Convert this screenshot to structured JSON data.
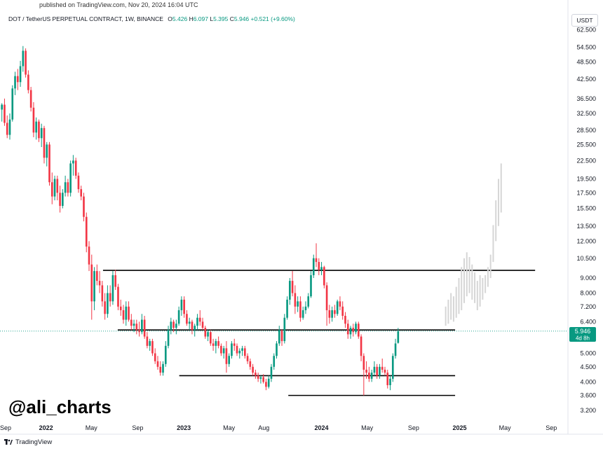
{
  "header": {
    "published": "published on TradingView.com, Nov 20, 2024 16:04 UTC",
    "symbol": "DOT / TetherUS PERPETUAL CONTRACT, 1W, BINANCE",
    "open_label": "O",
    "open": "5.426",
    "high_label": "H",
    "high": "6.097",
    "low_label": "L",
    "low": "5.395",
    "close_label": "C",
    "close": "5.946",
    "change": "+0.521 (+9.60%)"
  },
  "currency": "USDT",
  "watermark": "@ali_charts",
  "footer": {
    "brand": "TradingView"
  },
  "colors": {
    "up": "#089981",
    "down": "#f23645",
    "projection": "#d6d6d6",
    "level_line": "#000000",
    "price_tag": "#089981"
  },
  "chart_data": {
    "type": "candlestick",
    "scale": "log",
    "ylim": [
      3.0,
      64.0
    ],
    "xlim": [
      "2021-09-01",
      "2025-10-15"
    ],
    "current_price": {
      "value": 5.946,
      "label": "5.946",
      "countdown": "4d 8h"
    },
    "y_ticks": [
      {
        "v": 62.5,
        "label": "62.500"
      },
      {
        "v": 54.5,
        "label": "54.500"
      },
      {
        "v": 48.5,
        "label": "48.500"
      },
      {
        "v": 42.5,
        "label": "42.500"
      },
      {
        "v": 36.5,
        "label": "36.500"
      },
      {
        "v": 32.5,
        "label": "32.500"
      },
      {
        "v": 28.5,
        "label": "28.500"
      },
      {
        "v": 25.5,
        "label": "25.500"
      },
      {
        "v": 22.5,
        "label": "22.500"
      },
      {
        "v": 19.5,
        "label": "19.500"
      },
      {
        "v": 17.5,
        "label": "17.500"
      },
      {
        "v": 15.5,
        "label": "15.500"
      },
      {
        "v": 13.5,
        "label": "13.500"
      },
      {
        "v": 12.0,
        "label": "12.000"
      },
      {
        "v": 10.5,
        "label": "10.500"
      },
      {
        "v": 9.0,
        "label": "9.000"
      },
      {
        "v": 8.0,
        "label": "8.000"
      },
      {
        "v": 7.2,
        "label": "7.200"
      },
      {
        "v": 6.4,
        "label": "6.400"
      },
      {
        "v": 5.0,
        "label": "5.000"
      },
      {
        "v": 4.5,
        "label": "4.500"
      },
      {
        "v": 4.0,
        "label": "4.000"
      },
      {
        "v": 3.6,
        "label": "3.600"
      },
      {
        "v": 3.2,
        "label": "3.200"
      }
    ],
    "x_ticks": [
      {
        "d": "2021-09-01",
        "label": "Sep",
        "bold": false
      },
      {
        "d": "2022-01-01",
        "label": "2022",
        "bold": true
      },
      {
        "d": "2022-05-01",
        "label": "May",
        "bold": false
      },
      {
        "d": "2022-09-01",
        "label": "Sep",
        "bold": false
      },
      {
        "d": "2023-01-01",
        "label": "2023",
        "bold": true
      },
      {
        "d": "2023-05-01",
        "label": "May",
        "bold": false
      },
      {
        "d": "2023-08-01",
        "label": "Aug",
        "bold": false
      },
      {
        "d": "2024-01-01",
        "label": "2024",
        "bold": true
      },
      {
        "d": "2024-05-01",
        "label": "May",
        "bold": false
      },
      {
        "d": "2024-09-01",
        "label": "Sep",
        "bold": false
      },
      {
        "d": "2025-01-01",
        "label": "2025",
        "bold": true
      },
      {
        "d": "2025-05-01",
        "label": "May",
        "bold": false
      },
      {
        "d": "2025-09-01",
        "label": "Sep",
        "bold": false
      }
    ],
    "levels": [
      {
        "price": 9.55,
        "from": "2022-06-01",
        "to": "2025-07-20"
      },
      {
        "price": 6.0,
        "from": "2022-07-10",
        "to": "2024-12-20"
      },
      {
        "price": 4.2,
        "from": "2022-12-20",
        "to": "2024-12-20"
      },
      {
        "price": 3.6,
        "from": "2023-10-05",
        "to": "2024-12-20"
      }
    ],
    "candle_start": "2021-09-06",
    "candles": [
      [
        33.5,
        35.2,
        30.5,
        34.8
      ],
      [
        34.8,
        36.5,
        29.5,
        30.2
      ],
      [
        30.2,
        32.0,
        26.8,
        27.5
      ],
      [
        27.5,
        32.5,
        26.5,
        31.0
      ],
      [
        31.0,
        40.5,
        30.5,
        39.5
      ],
      [
        39.5,
        45.0,
        37.5,
        43.5
      ],
      [
        43.5,
        46.0,
        39.0,
        41.5
      ],
      [
        41.5,
        49.0,
        40.0,
        47.0
      ],
      [
        47.0,
        55.0,
        45.0,
        53.0
      ],
      [
        53.0,
        54.0,
        43.0,
        44.0
      ],
      [
        44.0,
        45.5,
        38.0,
        39.0
      ],
      [
        39.0,
        40.0,
        33.0,
        34.0
      ],
      [
        34.0,
        35.5,
        27.0,
        28.0
      ],
      [
        28.0,
        31.5,
        26.5,
        30.5
      ],
      [
        30.5,
        31.0,
        26.0,
        26.8
      ],
      [
        26.8,
        30.0,
        25.0,
        29.0
      ],
      [
        29.0,
        29.5,
        22.0,
        23.0
      ],
      [
        23.0,
        26.0,
        21.5,
        25.5
      ],
      [
        25.5,
        26.0,
        18.5,
        19.0
      ],
      [
        19.0,
        20.5,
        16.0,
        17.0
      ],
      [
        17.0,
        20.0,
        16.5,
        19.5
      ],
      [
        19.5,
        20.0,
        16.5,
        17.5
      ],
      [
        17.5,
        18.5,
        15.0,
        15.8
      ],
      [
        15.8,
        18.0,
        15.5,
        17.5
      ],
      [
        17.5,
        20.0,
        17.0,
        19.0
      ],
      [
        19.0,
        19.5,
        17.0,
        17.5
      ],
      [
        17.5,
        22.5,
        17.0,
        22.0
      ],
      [
        22.0,
        23.5,
        20.0,
        22.5
      ],
      [
        22.5,
        23.0,
        19.5,
        20.0
      ],
      [
        20.0,
        20.5,
        17.5,
        18.0
      ],
      [
        18.0,
        18.5,
        16.5,
        17.0
      ],
      [
        17.0,
        17.5,
        14.0,
        14.5
      ],
      [
        14.5,
        15.0,
        11.0,
        11.5
      ],
      [
        11.5,
        12.0,
        9.5,
        10.0
      ],
      [
        10.0,
        10.8,
        6.5,
        7.5
      ],
      [
        7.5,
        9.8,
        7.0,
        9.5
      ],
      [
        9.5,
        10.0,
        8.5,
        8.8
      ],
      [
        8.8,
        9.5,
        8.0,
        8.5
      ],
      [
        8.5,
        8.8,
        7.2,
        7.5
      ],
      [
        7.5,
        8.0,
        6.5,
        6.8
      ],
      [
        6.8,
        8.5,
        6.6,
        8.0
      ],
      [
        8.0,
        8.5,
        7.2,
        7.5
      ],
      [
        7.5,
        9.5,
        7.3,
        9.2
      ],
      [
        9.2,
        9.6,
        8.2,
        8.4
      ],
      [
        8.4,
        8.6,
        7.0,
        7.2
      ],
      [
        7.2,
        7.6,
        6.7,
        7.0
      ],
      [
        7.0,
        7.3,
        6.3,
        6.5
      ],
      [
        6.5,
        7.5,
        6.2,
        7.2
      ],
      [
        7.2,
        7.5,
        6.4,
        6.5
      ],
      [
        6.5,
        6.8,
        6.0,
        6.2
      ],
      [
        6.2,
        6.5,
        5.9,
        6.3
      ],
      [
        6.3,
        6.5,
        5.8,
        6.0
      ],
      [
        6.0,
        6.4,
        5.7,
        5.9
      ],
      [
        5.9,
        6.8,
        5.8,
        6.5
      ],
      [
        6.5,
        6.7,
        5.6,
        5.7
      ],
      [
        5.7,
        5.9,
        5.2,
        5.3
      ],
      [
        5.3,
        5.6,
        5.1,
        5.5
      ],
      [
        5.5,
        5.6,
        4.9,
        5.0
      ],
      [
        5.0,
        5.2,
        4.6,
        4.7
      ],
      [
        4.7,
        4.9,
        4.4,
        4.5
      ],
      [
        4.5,
        4.7,
        4.2,
        4.3
      ],
      [
        4.3,
        4.7,
        4.2,
        4.6
      ],
      [
        4.6,
        5.5,
        4.5,
        5.3
      ],
      [
        5.3,
        6.2,
        5.2,
        6.0
      ],
      [
        6.0,
        6.6,
        5.8,
        6.4
      ],
      [
        6.4,
        6.5,
        5.9,
        6.1
      ],
      [
        6.1,
        6.5,
        5.8,
        6.3
      ],
      [
        6.3,
        7.2,
        6.2,
        7.0
      ],
      [
        7.0,
        7.8,
        6.7,
        7.6
      ],
      [
        7.6,
        7.8,
        6.6,
        6.8
      ],
      [
        6.8,
        7.0,
        6.2,
        6.3
      ],
      [
        6.3,
        6.6,
        6.0,
        6.4
      ],
      [
        6.4,
        6.5,
        5.8,
        6.0
      ],
      [
        6.0,
        6.3,
        5.7,
        6.2
      ],
      [
        6.2,
        6.8,
        6.0,
        6.6
      ],
      [
        6.6,
        7.0,
        6.2,
        6.4
      ],
      [
        6.4,
        6.6,
        6.0,
        6.1
      ],
      [
        6.1,
        6.2,
        5.6,
        5.7
      ],
      [
        5.7,
        6.0,
        5.5,
        5.9
      ],
      [
        5.9,
        6.0,
        5.3,
        5.4
      ],
      [
        5.4,
        5.6,
        5.1,
        5.3
      ],
      [
        5.3,
        5.6,
        5.0,
        5.5
      ],
      [
        5.5,
        5.7,
        5.2,
        5.3
      ],
      [
        5.3,
        5.4,
        4.9,
        5.0
      ],
      [
        5.0,
        5.3,
        4.8,
        5.2
      ],
      [
        5.2,
        5.5,
        4.3,
        4.6
      ],
      [
        4.6,
        5.0,
        4.5,
        4.9
      ],
      [
        4.9,
        5.5,
        4.8,
        5.4
      ],
      [
        5.4,
        5.6,
        5.1,
        5.3
      ],
      [
        5.3,
        5.4,
        4.9,
        5.0
      ],
      [
        5.0,
        5.2,
        4.8,
        5.1
      ],
      [
        5.1,
        5.3,
        4.9,
        5.2
      ],
      [
        5.2,
        5.3,
        4.8,
        4.9
      ],
      [
        4.9,
        5.0,
        4.6,
        4.7
      ],
      [
        4.7,
        4.8,
        4.4,
        4.5
      ],
      [
        4.5,
        4.6,
        4.2,
        4.3
      ],
      [
        4.3,
        4.4,
        4.1,
        4.2
      ],
      [
        4.2,
        4.3,
        4.0,
        4.1
      ],
      [
        4.1,
        4.2,
        3.95,
        4.15
      ],
      [
        4.15,
        4.25,
        3.95,
        4.0
      ],
      [
        4.0,
        4.1,
        3.75,
        3.85
      ],
      [
        3.85,
        4.2,
        3.8,
        4.1
      ],
      [
        4.1,
        4.6,
        4.0,
        4.5
      ],
      [
        4.5,
        5.0,
        4.4,
        4.9
      ],
      [
        4.9,
        5.5,
        4.8,
        5.4
      ],
      [
        5.4,
        6.2,
        5.3,
        6.0
      ],
      [
        6.0,
        5.9,
        5.3,
        5.5
      ],
      [
        5.5,
        6.8,
        5.4,
        6.6
      ],
      [
        6.6,
        7.8,
        6.5,
        7.6
      ],
      [
        7.6,
        9.0,
        7.3,
        8.8
      ],
      [
        8.8,
        9.5,
        7.8,
        8.0
      ],
      [
        8.0,
        8.5,
        6.8,
        7.2
      ],
      [
        7.2,
        7.8,
        6.9,
        7.5
      ],
      [
        7.5,
        7.8,
        6.4,
        6.6
      ],
      [
        6.6,
        7.2,
        6.5,
        7.0
      ],
      [
        7.0,
        7.5,
        6.8,
        7.2
      ],
      [
        7.2,
        8.0,
        7.1,
        7.8
      ],
      [
        7.8,
        9.5,
        7.7,
        9.2
      ],
      [
        9.2,
        10.8,
        9.0,
        10.5
      ],
      [
        10.5,
        11.8,
        9.8,
        10.2
      ],
      [
        10.2,
        10.5,
        9.2,
        9.6
      ],
      [
        9.6,
        10.2,
        9.2,
        9.8
      ],
      [
        9.8,
        9.9,
        8.3,
        8.5
      ],
      [
        8.5,
        8.7,
        6.2,
        7.0
      ],
      [
        7.0,
        7.3,
        6.3,
        6.6
      ],
      [
        6.6,
        7.2,
        6.4,
        7.0
      ],
      [
        7.0,
        7.3,
        6.6,
        6.8
      ],
      [
        6.8,
        7.6,
        6.7,
        7.5
      ],
      [
        7.5,
        7.8,
        7.0,
        7.2
      ],
      [
        7.2,
        7.5,
        6.5,
        6.7
      ],
      [
        6.7,
        6.9,
        6.1,
        6.3
      ],
      [
        6.3,
        6.5,
        5.6,
        5.8
      ],
      [
        5.8,
        6.2,
        5.6,
        6.1
      ],
      [
        6.1,
        6.3,
        5.7,
        5.9
      ],
      [
        5.9,
        6.4,
        5.8,
        6.3
      ],
      [
        6.3,
        6.4,
        5.6,
        5.7
      ],
      [
        5.7,
        5.8,
        4.7,
        4.9
      ],
      [
        4.9,
        5.0,
        3.6,
        4.4
      ],
      [
        4.4,
        4.7,
        4.1,
        4.3
      ],
      [
        4.3,
        4.5,
        4.0,
        4.1
      ],
      [
        4.1,
        4.4,
        4.0,
        4.3
      ],
      [
        4.3,
        4.7,
        4.2,
        4.5
      ],
      [
        4.5,
        4.6,
        4.1,
        4.2
      ],
      [
        4.2,
        4.6,
        4.1,
        4.5
      ],
      [
        4.5,
        4.8,
        4.3,
        4.4
      ],
      [
        4.4,
        4.5,
        4.2,
        4.3
      ],
      [
        4.3,
        4.4,
        3.8,
        3.9
      ],
      [
        3.9,
        4.2,
        3.75,
        4.1
      ],
      [
        4.1,
        5.0,
        4.0,
        4.9
      ],
      [
        4.9,
        5.6,
        4.8,
        5.4
      ],
      [
        5.426,
        6.097,
        5.395,
        5.946
      ]
    ],
    "projection_start": "2024-11-25",
    "projection": [
      [
        6.2,
        7.2
      ],
      [
        6.3,
        7.6
      ],
      [
        6.5,
        8.0
      ],
      [
        6.4,
        7.8
      ],
      [
        6.6,
        8.4
      ],
      [
        6.8,
        9.0
      ],
      [
        7.0,
        9.8
      ],
      [
        7.4,
        10.5
      ],
      [
        7.8,
        11.0
      ],
      [
        8.0,
        10.6
      ],
      [
        7.6,
        10.0
      ],
      [
        7.4,
        9.4
      ],
      [
        7.0,
        8.8
      ],
      [
        7.2,
        9.2
      ],
      [
        7.6,
        9.0
      ],
      [
        8.0,
        9.2
      ],
      [
        8.4,
        9.8
      ],
      [
        9.0,
        10.8
      ],
      [
        10.2,
        13.6
      ],
      [
        12.0,
        16.5
      ],
      [
        13.5,
        19.5
      ],
      [
        15.0,
        22.0
      ]
    ]
  }
}
